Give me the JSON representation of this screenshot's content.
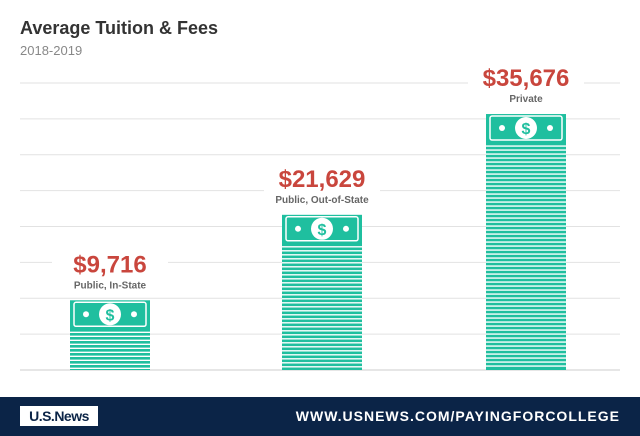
{
  "chart_data": {
    "type": "bar",
    "title": "Average Tuition & Fees",
    "subtitle": "2018-2019",
    "categories": [
      "Public, In-State",
      "Public, Out-of-State",
      "Private"
    ],
    "values": [
      9716,
      21629,
      35676
    ],
    "value_labels": [
      "$9,716",
      "$21,629",
      "$35,676"
    ],
    "ylim": [
      0,
      40000
    ],
    "grid": true,
    "bar_color": "#1fbf9f",
    "label_color": "#c9463d"
  },
  "footer": {
    "logo": "U.S.News",
    "url": "WWW.USNEWS.COM/PAYINGFORCOLLEGE",
    "background": "#0b2447"
  }
}
